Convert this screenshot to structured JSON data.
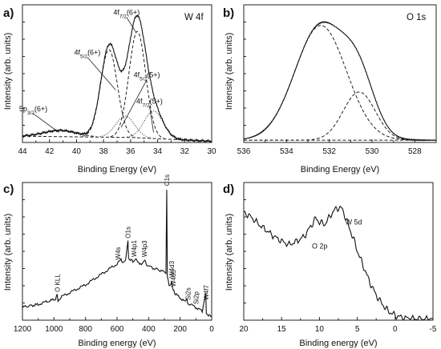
{
  "chart_data": [
    {
      "id": "a",
      "panel_label": "a)",
      "type": "line",
      "corner_label": "W 4f",
      "xlabel": "Binding Energy (eV)",
      "ylabel": "Intensity (arb. units)",
      "xlim": [
        44,
        30
      ],
      "xticks": [
        44,
        42,
        40,
        38,
        36,
        34,
        32,
        30
      ],
      "xtick_labels": [
        "44",
        "42",
        "40",
        "38",
        "36",
        "34",
        "32",
        "30"
      ],
      "y_tick_labels": false,
      "background": {
        "x": [
          44,
          36,
          30
        ],
        "y": [
          0.05,
          0.04,
          0.01
        ]
      },
      "components": [
        {
          "center": 41.2,
          "height": 0.05,
          "width": 1.2,
          "style": "dashed"
        },
        {
          "center": 37.6,
          "height": 0.7,
          "width": 0.62,
          "style": "dashed"
        },
        {
          "center": 35.5,
          "height": 0.85,
          "width": 0.62,
          "style": "dashed"
        },
        {
          "center": 36.4,
          "height": 0.17,
          "width": 0.7,
          "style": "dotted"
        },
        {
          "center": 34.3,
          "height": 0.22,
          "width": 0.7,
          "style": "dotted"
        }
      ],
      "annotations": [
        {
          "main": "4f",
          "sub": "7/2",
          "tail": "(6+)",
          "at": [
            36.3,
            1.02
          ],
          "arrow_to": [
            35.6,
            0.88
          ]
        },
        {
          "main": "4f",
          "sub": "5/2",
          "tail": "(6+)",
          "at": [
            39.2,
            0.7
          ],
          "arrow_to": [
            37.1,
            0.42
          ]
        },
        {
          "main": "4f",
          "sub": "5/2",
          "tail": "(5+)",
          "at": [
            34.8,
            0.52
          ],
          "arrow_to": [
            36.7,
            0.12
          ]
        },
        {
          "main": "4f",
          "sub": "7/2",
          "tail": "(5+)",
          "at": [
            34.6,
            0.31
          ],
          "arrow_to": [
            34.3,
            0.08
          ]
        },
        {
          "main": "5p",
          "sub": "3/2",
          "tail": "(6+)",
          "at": [
            43.2,
            0.25
          ],
          "arrow_to": [
            41.3,
            0.08
          ]
        }
      ],
      "ylim": [
        0,
        1.1
      ]
    },
    {
      "id": "b",
      "panel_label": "b)",
      "type": "line",
      "corner_label": "O 1s",
      "xlabel": "Binding Energy (eV)",
      "ylabel": "Intensity (arb. units)",
      "xlim": [
        536,
        527
      ],
      "xticks": [
        536,
        534,
        532,
        530,
        528
      ],
      "xtick_labels": [
        "536",
        "534",
        "532",
        "530",
        "528"
      ],
      "y_tick_labels": false,
      "components": [
        {
          "center": 532.4,
          "height": 1.0,
          "width": 1.2,
          "style": "dashed"
        },
        {
          "center": 530.6,
          "height": 0.42,
          "width": 0.75,
          "style": "dashed"
        }
      ],
      "ylim": [
        0,
        1.2
      ]
    },
    {
      "id": "c",
      "panel_label": "c)",
      "type": "line",
      "xlabel": "Binding energy (eV)",
      "ylabel": "Intensity (arb. units)",
      "xlim": [
        1200,
        0
      ],
      "xticks": [
        1200,
        1000,
        800,
        600,
        400,
        200,
        0
      ],
      "xtick_labels": [
        "1200",
        "1000",
        "800",
        "600",
        "400",
        "200",
        "0"
      ],
      "y_tick_labels": false,
      "survey_points": [
        [
          1200,
          0.1
        ],
        [
          1100,
          0.12
        ],
        [
          1050,
          0.14
        ],
        [
          990,
          0.16
        ],
        [
          980,
          0.19
        ],
        [
          975,
          0.15
        ],
        [
          950,
          0.18
        ],
        [
          900,
          0.21
        ],
        [
          850,
          0.24
        ],
        [
          800,
          0.27
        ],
        [
          750,
          0.31
        ],
        [
          700,
          0.35
        ],
        [
          650,
          0.39
        ],
        [
          600,
          0.43
        ],
        [
          575,
          0.46
        ],
        [
          560,
          0.44
        ],
        [
          545,
          0.46
        ],
        [
          531,
          0.6
        ],
        [
          527,
          0.47
        ],
        [
          500,
          0.45
        ],
        [
          480,
          0.47
        ],
        [
          470,
          0.44
        ],
        [
          440,
          0.43
        ],
        [
          424,
          0.46
        ],
        [
          415,
          0.42
        ],
        [
          400,
          0.41
        ],
        [
          380,
          0.4
        ],
        [
          350,
          0.39
        ],
        [
          310,
          0.37
        ],
        [
          290,
          0.36
        ],
        [
          285,
          1.0
        ],
        [
          281,
          0.33
        ],
        [
          270,
          0.27
        ],
        [
          260,
          0.27
        ],
        [
          255,
          0.3
        ],
        [
          248,
          0.25
        ],
        [
          240,
          0.22
        ],
        [
          230,
          0.2
        ],
        [
          200,
          0.17
        ],
        [
          170,
          0.14
        ],
        [
          160,
          0.17
        ],
        [
          152,
          0.13
        ],
        [
          120,
          0.11
        ],
        [
          90,
          0.09
        ],
        [
          60,
          0.07
        ],
        [
          38,
          0.2
        ],
        [
          34,
          0.06
        ],
        [
          20,
          0.04
        ],
        [
          10,
          0.03
        ],
        [
          0,
          0.03
        ]
      ],
      "peak_labels": [
        {
          "text": "O KLL",
          "x": 980
        },
        {
          "text": "W4s",
          "x": 595
        },
        {
          "text": "O1s",
          "x": 531
        },
        {
          "text": "W4p1",
          "x": 492
        },
        {
          "text": "W4p3",
          "x": 426
        },
        {
          "text": "C1s",
          "x": 285
        },
        {
          "text": "W4d3",
          "x": 255
        },
        {
          "text": "W4d5",
          "x": 243
        },
        {
          "text": "Si2s",
          "x": 151
        },
        {
          "text": "Si2p",
          "x": 100
        },
        {
          "text": "W4f7",
          "x": 36
        }
      ],
      "ylim": [
        0,
        1.05
      ]
    },
    {
      "id": "d",
      "panel_label": "d)",
      "type": "line",
      "xlabel": "Binding energy (eV)",
      "ylabel": "Intensity (arb. units)",
      "xlim": [
        20,
        -5
      ],
      "xticks": [
        20,
        15,
        10,
        5,
        0,
        -5
      ],
      "xtick_labels": [
        "20",
        "15",
        "10",
        "5",
        "0",
        "-5"
      ],
      "y_tick_labels": false,
      "curve_points": [
        [
          20,
          0.9
        ],
        [
          19,
          0.86
        ],
        [
          18,
          0.8
        ],
        [
          17,
          0.75
        ],
        [
          16,
          0.7
        ],
        [
          15,
          0.66
        ],
        [
          14,
          0.63
        ],
        [
          13,
          0.66
        ],
        [
          12,
          0.7
        ],
        [
          11,
          0.8
        ],
        [
          10.5,
          0.85
        ],
        [
          10,
          0.82
        ],
        [
          9.3,
          0.8
        ],
        [
          8.5,
          0.88
        ],
        [
          8,
          0.92
        ],
        [
          7.5,
          0.94
        ],
        [
          7,
          0.93
        ],
        [
          6.5,
          0.85
        ],
        [
          6,
          0.76
        ],
        [
          5.5,
          0.68
        ],
        [
          5,
          0.58
        ],
        [
          4.5,
          0.5
        ],
        [
          4,
          0.42
        ],
        [
          3.5,
          0.34
        ],
        [
          3,
          0.27
        ],
        [
          2.5,
          0.21
        ],
        [
          2,
          0.16
        ],
        [
          1.5,
          0.12
        ],
        [
          1,
          0.08
        ],
        [
          0.5,
          0.06
        ],
        [
          0,
          0.04
        ],
        [
          -0.5,
          0.03
        ],
        [
          -1,
          0.02
        ],
        [
          -2,
          0.015
        ],
        [
          -3,
          0.01
        ],
        [
          -4,
          0.01
        ],
        [
          -5,
          0.01
        ]
      ],
      "labels": [
        {
          "text": "O 2p",
          "x": 11,
          "y": 0.6
        },
        {
          "text": "W 5d",
          "x": 6.6,
          "y": 0.8
        }
      ],
      "ylim": [
        0,
        1.15
      ]
    }
  ]
}
